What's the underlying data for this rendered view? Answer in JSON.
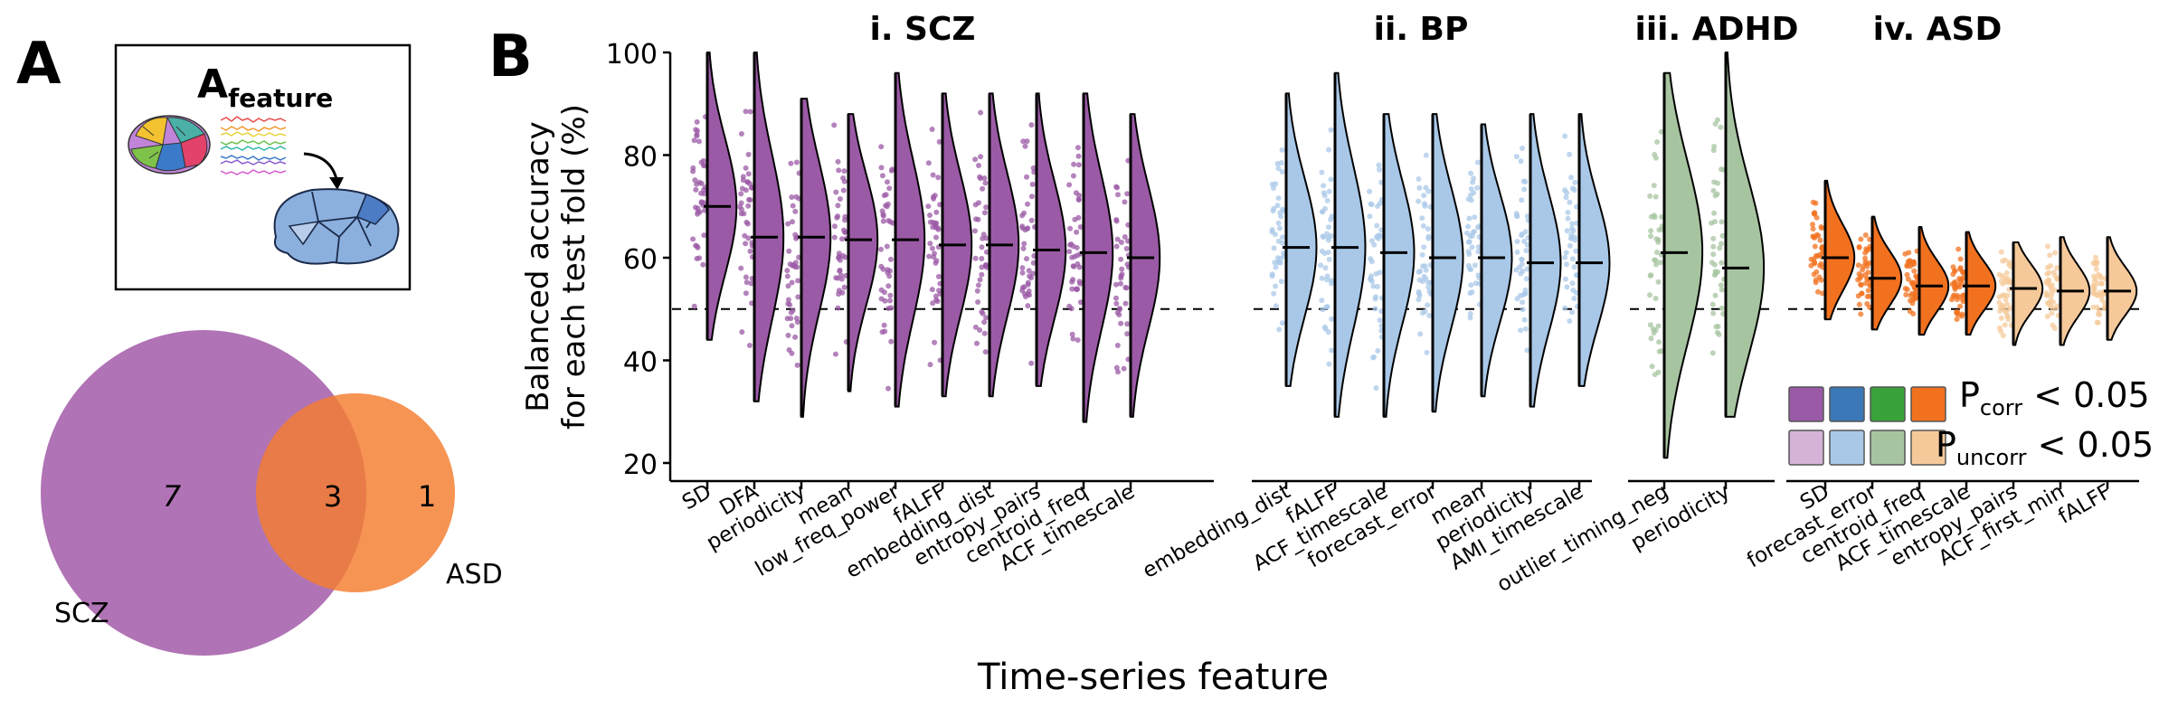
{
  "panel_a": {
    "label": "A",
    "inset_title_main": "A",
    "inset_title_sub": "feature",
    "venn": {
      "set_left": {
        "name": "SCZ",
        "count": "7",
        "color": "#a25aa8"
      },
      "set_right": {
        "name": "ASD",
        "count": "1",
        "color": "#f47c2e"
      },
      "overlap": "3"
    }
  },
  "panel_b": {
    "label": "B"
  },
  "colors": {
    "SCZ": {
      "corr": "#9b5aa6",
      "uncorr": "#d5b3d8"
    },
    "BP": {
      "corr": "#3b78b8",
      "uncorr": "#a9c8e8"
    },
    "ADHD": {
      "corr": "#3aa23a",
      "uncorr": "#a7c4a0"
    },
    "ASD": {
      "corr": "#f2711f",
      "uncorr": "#f6c99a"
    }
  },
  "legend": {
    "row1_label_main": "P",
    "row1_label_sub": "corr",
    "row1_label_rest": " < 0.05",
    "row2_label_main": "P",
    "row2_label_sub": "uncorr",
    "row2_label_rest": " < 0.05"
  },
  "chart_data": {
    "type": "raincloud",
    "ylabel_line1": "Balanced accuracy",
    "ylabel_line2": "for each test fold (%)",
    "xlabel": "Time-series feature",
    "ylim": [
      20,
      100
    ],
    "yticks": [
      "20",
      "40",
      "60",
      "80",
      "100"
    ],
    "reference_line": 50,
    "groups": [
      {
        "title": "i. SCZ",
        "key": "SCZ",
        "features": [
          "SD",
          "DFA",
          "periodicity",
          "mean",
          "low_freq_power",
          "fALFF",
          "embedding_dist",
          "entropy_pairs",
          "centroid_freq",
          "ACF_timescale"
        ],
        "medians": [
          70,
          64,
          64,
          63.5,
          63.5,
          62.5,
          62.5,
          61.5,
          61,
          60
        ],
        "mins": [
          44,
          32,
          29,
          34,
          31,
          33,
          33,
          35,
          28,
          29
        ],
        "maxs": [
          100,
          100,
          91,
          88,
          96,
          92,
          92,
          92,
          92,
          88
        ],
        "shading": [
          "corr",
          "corr",
          "corr",
          "corr",
          "corr",
          "corr",
          "corr",
          "corr",
          "corr",
          "corr"
        ]
      },
      {
        "title": "ii. BP",
        "key": "BP",
        "features": [
          "embedding_dist",
          "fALFF",
          "ACF_timescale",
          "forecast_error",
          "mean",
          "periodicity",
          "AMI_timescale"
        ],
        "medians": [
          62,
          62,
          61,
          60,
          60,
          59,
          59
        ],
        "mins": [
          35,
          29,
          29,
          30,
          33,
          31,
          35
        ],
        "maxs": [
          92,
          96,
          88,
          88,
          86,
          88,
          88
        ],
        "shading": [
          "uncorr",
          "uncorr",
          "uncorr",
          "uncorr",
          "uncorr",
          "uncorr",
          "uncorr"
        ]
      },
      {
        "title": "iii. ADHD",
        "key": "ADHD",
        "features": [
          "outlier_timing_neg",
          "periodicity"
        ],
        "medians": [
          61,
          58
        ],
        "mins": [
          21,
          29
        ],
        "maxs": [
          96,
          100
        ],
        "shading": [
          "uncorr",
          "uncorr"
        ]
      },
      {
        "title": "iv. ASD",
        "key": "ASD",
        "features": [
          "SD",
          "forecast_error",
          "centroid_freq",
          "ACF_timescale",
          "entropy_pairs",
          "ACF_first_min",
          "fALFF"
        ],
        "medians": [
          60,
          56,
          54.5,
          54.5,
          54,
          53.5,
          53.5
        ],
        "mins": [
          48,
          46,
          45,
          45,
          43,
          43,
          44
        ],
        "maxs": [
          75,
          68,
          66,
          65,
          63,
          64,
          64
        ],
        "shading": [
          "corr",
          "corr",
          "corr",
          "corr",
          "uncorr",
          "uncorr",
          "uncorr"
        ]
      }
    ]
  }
}
